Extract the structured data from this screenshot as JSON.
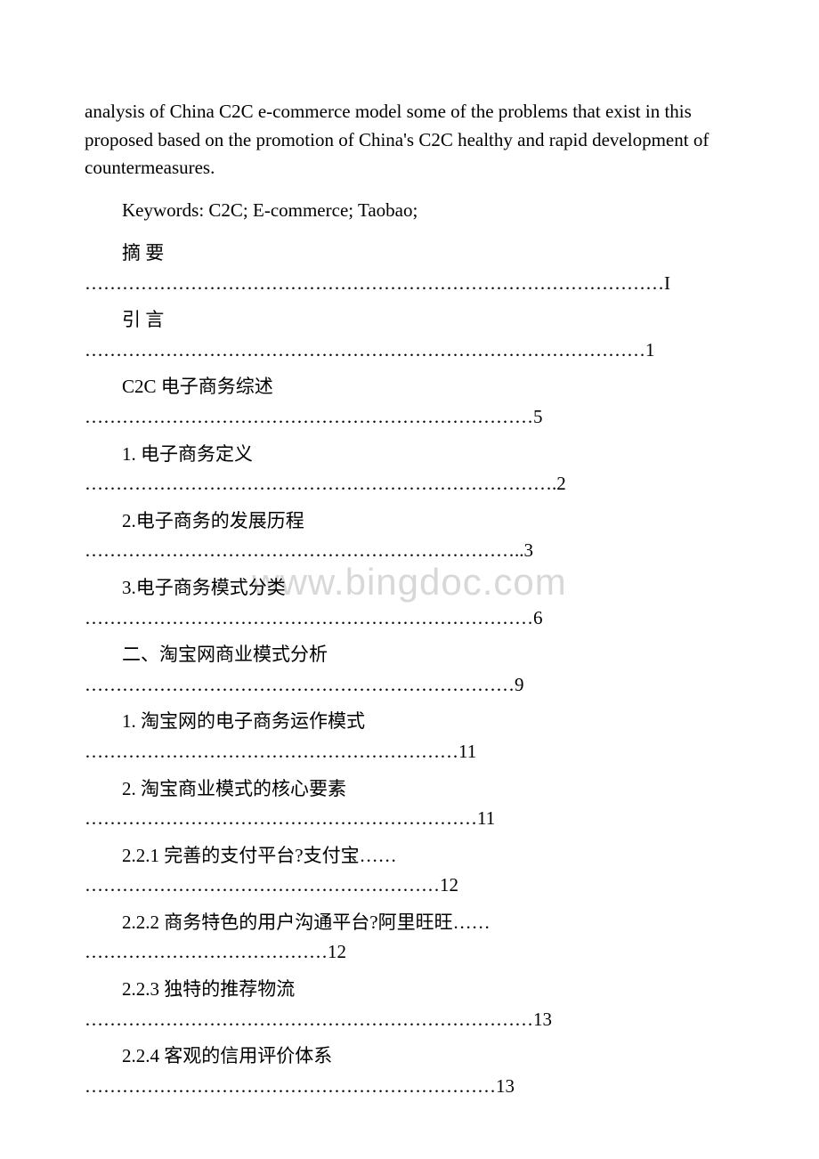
{
  "watermark": "www.bingdoc.com",
  "paragraph_text": "analysis of China C2C e-commerce model some of the problems that exist in this proposed based on the promotion of China's C2C healthy and rapid development of countermeasures.",
  "keywords_text": "Keywords: C2C; E-commerce; Taobao;",
  "toc": [
    {
      "title": "摘 要",
      "dots": "…………………………………………………………………………………I"
    },
    {
      "title": "引 言",
      "dots": "………………………………………………………………………………1"
    },
    {
      "title": "C2C 电子商务综述",
      "dots": "………………………………………………………………5"
    },
    {
      "title": "1. 电子商务定义",
      "dots": "………………………………………………………………….2"
    },
    {
      "title": "2.电子商务的发展历程",
      "dots": "……………………………………………………………..3"
    },
    {
      "title": "3.电子商务模式分类",
      "dots": "………………………………………………………………6"
    },
    {
      "title": "二、淘宝网商业模式分析",
      "dots": "……………………………………………………………9"
    },
    {
      "title": "1. 淘宝网的电子商务运作模式",
      "dots": "……………………………………………………11"
    },
    {
      "title": "2. 淘宝商业模式的核心要素",
      "dots": "………………………………………………………11"
    },
    {
      "title": "2.2.1 完善的支付平台?支付宝……",
      "dots": "…………………………………………………12"
    },
    {
      "title": "2.2.2 商务特色的用户沟通平台?阿里旺旺……",
      "dots": "…………………………………12"
    },
    {
      "title": "2.2.3 独特的推荐物流",
      "dots": "………………………………………………………………13"
    },
    {
      "title": "2.2.4 客观的信用评价体系",
      "dots": "…………………………………………………………13"
    }
  ]
}
